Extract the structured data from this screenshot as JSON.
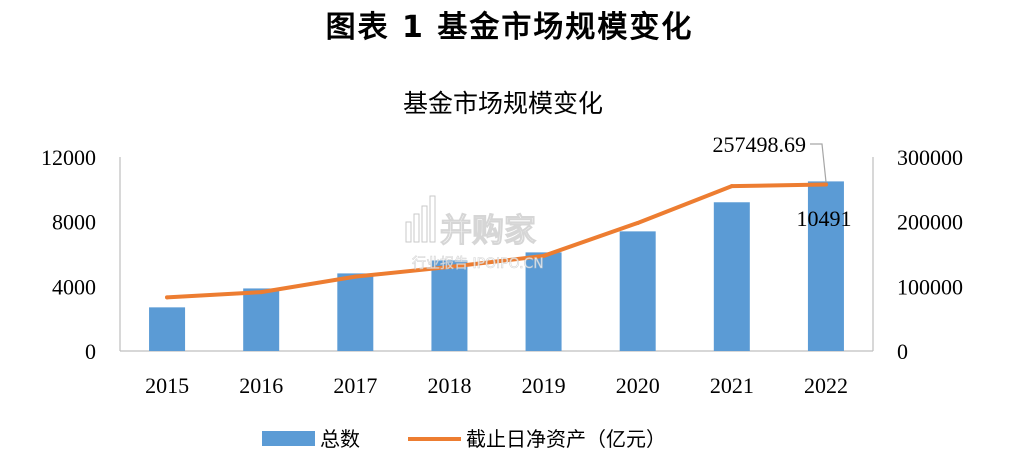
{
  "figure_title": "图表 1 基金市场规模变化",
  "watermark": {
    "brand": "并购家",
    "sub": "行业报告 IPOIPO.CN"
  },
  "chart_data": {
    "type": "bar+line",
    "title": "基金市场规模变化",
    "categories": [
      "2015",
      "2016",
      "2017",
      "2018",
      "2019",
      "2020",
      "2021",
      "2022"
    ],
    "series": [
      {
        "name": "总数",
        "kind": "bar",
        "axis": "left",
        "color": "#5b9bd5",
        "values": [
          2700,
          3870,
          4800,
          5600,
          6100,
          7400,
          9200,
          10491
        ]
      },
      {
        "name": "截止日净资产（亿元）",
        "kind": "line",
        "axis": "right",
        "color": "#ed7d31",
        "values": [
          83000,
          91000,
          115000,
          130000,
          147000,
          198000,
          255000,
          257498.69
        ]
      }
    ],
    "y_left": {
      "ylim": [
        0,
        12000
      ],
      "ticks": [
        "0",
        "4000",
        "8000",
        "12000"
      ]
    },
    "y_right": {
      "ylim": [
        0,
        300000
      ],
      "ticks": [
        "0",
        "100000",
        "200000",
        "300000"
      ]
    },
    "annotations": {
      "bar_last_label": "10491",
      "line_last_label": "257498.69"
    },
    "legend_position": "bottom",
    "grid": false
  }
}
